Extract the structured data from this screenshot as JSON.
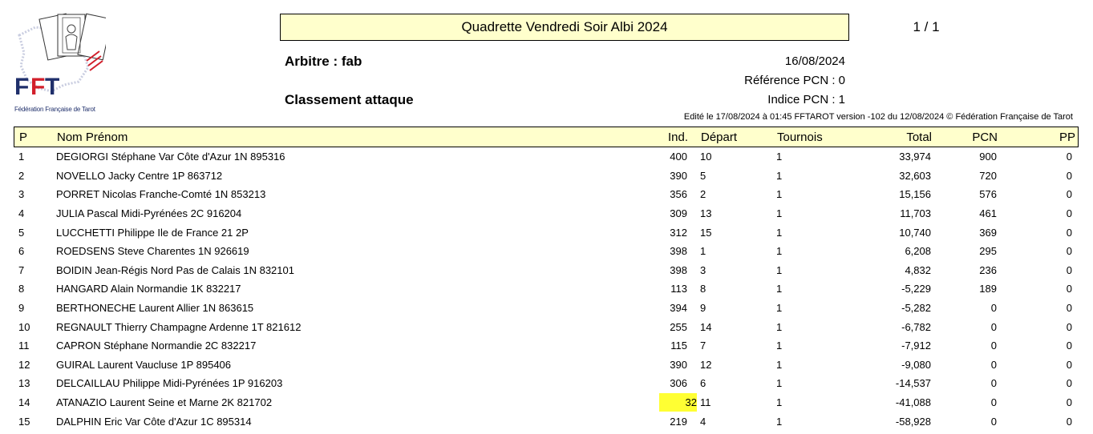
{
  "header": {
    "title": "Quadrette Vendredi Soir Albi 2024",
    "page": "1 / 1",
    "arbitre": "Arbitre : fab",
    "classement": "Classement attaque",
    "date": "16/08/2024",
    "reference_pcn": "Référence PCN : 0",
    "indice_pcn": "Indice PCN : 1",
    "edition": "Edité le 17/08/2024 à 01:45 FFTAROT version -102 du 12/08/2024 © Fédération Française de Tarot"
  },
  "logo": {
    "text": "FFT",
    "caption": "Fédération Française de Tarot",
    "colors": {
      "blue": "#1f2f6b",
      "red": "#d21f2b"
    }
  },
  "table": {
    "columns": [
      "P",
      "Nom Prénom",
      "Ind.",
      "Départ",
      "Tournois",
      "Total",
      "PCN",
      "PP"
    ],
    "rows": [
      {
        "p": "1",
        "name": "DEGIORGI Stéphane Var Côte d'Azur 1N 895316",
        "ind": "400",
        "depart": "10",
        "tournois": "1",
        "total": "33,974",
        "pcn": "900",
        "pp": "0"
      },
      {
        "p": "2",
        "name": "NOVELLO Jacky Centre 1P 863712",
        "ind": "390",
        "depart": "5",
        "tournois": "1",
        "total": "32,603",
        "pcn": "720",
        "pp": "0"
      },
      {
        "p": "3",
        "name": "PORRET Nicolas Franche-Comté 1N 853213",
        "ind": "356",
        "depart": "2",
        "tournois": "1",
        "total": "15,156",
        "pcn": "576",
        "pp": "0"
      },
      {
        "p": "4",
        "name": "JULIA Pascal Midi-Pyrénées 2C 916204",
        "ind": "309",
        "depart": "13",
        "tournois": "1",
        "total": "11,703",
        "pcn": "461",
        "pp": "0"
      },
      {
        "p": "5",
        "name": "LUCCHETTI Philippe Ile de France 21 2P",
        "ind": "312",
        "depart": "15",
        "tournois": "1",
        "total": "10,740",
        "pcn": "369",
        "pp": "0"
      },
      {
        "p": "6",
        "name": "ROEDSENS Steve Charentes 1N 926619",
        "ind": "398",
        "depart": "1",
        "tournois": "1",
        "total": "6,208",
        "pcn": "295",
        "pp": "0"
      },
      {
        "p": "7",
        "name": "BOIDIN Jean-Régis Nord Pas de Calais 1N 832101",
        "ind": "398",
        "depart": "3",
        "tournois": "1",
        "total": "4,832",
        "pcn": "236",
        "pp": "0"
      },
      {
        "p": "8",
        "name": "HANGARD Alain Normandie 1K 832217",
        "ind": "113",
        "depart": "8",
        "tournois": "1",
        "total": "-5,229",
        "pcn": "189",
        "pp": "0"
      },
      {
        "p": "9",
        "name": "BERTHONECHE Laurent Allier 1N 863615",
        "ind": "394",
        "depart": "9",
        "tournois": "1",
        "total": "-5,282",
        "pcn": "0",
        "pp": "0"
      },
      {
        "p": "10",
        "name": "REGNAULT Thierry Champagne Ardenne 1T 821612",
        "ind": "255",
        "depart": "14",
        "tournois": "1",
        "total": "-6,782",
        "pcn": "0",
        "pp": "0"
      },
      {
        "p": "11",
        "name": "CAPRON Stéphane Normandie 2C 832217",
        "ind": "115",
        "depart": "7",
        "tournois": "1",
        "total": "-7,912",
        "pcn": "0",
        "pp": "0"
      },
      {
        "p": "12",
        "name": "GUIRAL Laurent Vaucluse 1P 895406",
        "ind": "390",
        "depart": "12",
        "tournois": "1",
        "total": "-9,080",
        "pcn": "0",
        "pp": "0"
      },
      {
        "p": "13",
        "name": "DELCAILLAU Philippe Midi-Pyrénées 1P 916203",
        "ind": "306",
        "depart": "6",
        "tournois": "1",
        "total": "-14,537",
        "pcn": "0",
        "pp": "0"
      },
      {
        "p": "14",
        "name": "ATANAZIO Laurent Seine et Marne 2K 821702",
        "ind": "32",
        "depart": "11",
        "tournois": "1",
        "total": "-41,088",
        "pcn": "0",
        "pp": "0",
        "highlight_ind": true
      },
      {
        "p": "15",
        "name": "DALPHIN Eric Var Côte d'Azur 1C 895314",
        "ind": "219",
        "depart": "4",
        "tournois": "1",
        "total": "-58,928",
        "pcn": "0",
        "pp": "0"
      }
    ]
  },
  "colors": {
    "header_bg": "#ffffcc",
    "highlight": "#ffff33"
  }
}
